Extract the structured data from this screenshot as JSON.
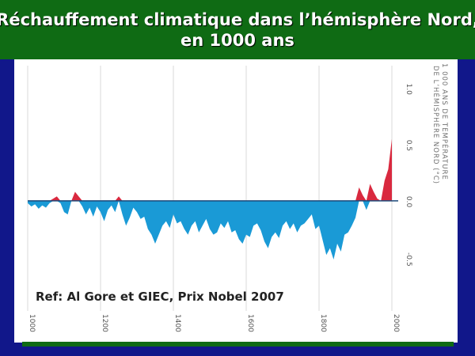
{
  "slide": {
    "title_line1": "Réchauffement climatique dans l’hémisphère Nord,",
    "title_line2": "en 1000 ans",
    "reference": "Ref: Al Gore et GIEC, Prix Nobel 2007"
  },
  "chart_data": {
    "type": "area",
    "ylabel_line1": "1 000 ANS DE TEMPÉRATURE",
    "ylabel_line2": "DE L’HÉMISPHÈRE NORD (°C)",
    "xlim": [
      1000,
      2000
    ],
    "ylim": [
      -0.85,
      1.2
    ],
    "x_ticks": [
      1000,
      1200,
      1400,
      1600,
      1800,
      2000
    ],
    "y_ticks": [
      1.0,
      0.5,
      0.0,
      -0.5
    ],
    "y_tick_labels": [
      "1.0",
      "0.5",
      "0.0",
      "-0.5"
    ],
    "grid": true,
    "series": [
      {
        "positive_color": "#d9293f",
        "negative_color": "#1a9ad6",
        "x": [
          1000,
          1010,
          1020,
          1030,
          1040,
          1050,
          1060,
          1070,
          1080,
          1090,
          1100,
          1110,
          1120,
          1130,
          1140,
          1150,
          1160,
          1170,
          1180,
          1190,
          1200,
          1210,
          1220,
          1230,
          1240,
          1250,
          1260,
          1270,
          1280,
          1290,
          1300,
          1310,
          1320,
          1330,
          1340,
          1350,
          1360,
          1370,
          1380,
          1390,
          1400,
          1410,
          1420,
          1430,
          1440,
          1450,
          1460,
          1470,
          1480,
          1490,
          1500,
          1510,
          1520,
          1530,
          1540,
          1550,
          1560,
          1570,
          1580,
          1590,
          1600,
          1610,
          1620,
          1630,
          1640,
          1650,
          1660,
          1670,
          1680,
          1690,
          1700,
          1710,
          1720,
          1730,
          1740,
          1750,
          1760,
          1770,
          1780,
          1790,
          1800,
          1810,
          1820,
          1830,
          1840,
          1850,
          1860,
          1870,
          1880,
          1890,
          1900,
          1910,
          1920,
          1930,
          1940,
          1950,
          1960,
          1970,
          1980,
          1990,
          2000
        ],
        "y": [
          -0.02,
          -0.05,
          -0.03,
          -0.07,
          -0.04,
          -0.06,
          -0.02,
          0.02,
          0.04,
          -0.02,
          -0.1,
          -0.12,
          0.0,
          0.08,
          0.04,
          -0.05,
          -0.12,
          -0.06,
          -0.14,
          -0.05,
          -0.1,
          -0.18,
          -0.08,
          -0.04,
          -0.1,
          0.04,
          -0.12,
          -0.22,
          -0.15,
          -0.06,
          -0.1,
          -0.16,
          -0.14,
          -0.25,
          -0.3,
          -0.38,
          -0.3,
          -0.22,
          -0.18,
          -0.24,
          -0.12,
          -0.2,
          -0.18,
          -0.25,
          -0.3,
          -0.22,
          -0.18,
          -0.28,
          -0.22,
          -0.16,
          -0.25,
          -0.3,
          -0.28,
          -0.2,
          -0.24,
          -0.18,
          -0.28,
          -0.26,
          -0.34,
          -0.38,
          -0.3,
          -0.32,
          -0.22,
          -0.2,
          -0.26,
          -0.36,
          -0.42,
          -0.32,
          -0.28,
          -0.33,
          -0.22,
          -0.18,
          -0.25,
          -0.2,
          -0.28,
          -0.22,
          -0.2,
          -0.16,
          -0.12,
          -0.25,
          -0.22,
          -0.35,
          -0.48,
          -0.42,
          -0.52,
          -0.38,
          -0.45,
          -0.3,
          -0.28,
          -0.22,
          -0.15,
          0.12,
          0.05,
          -0.08,
          0.15,
          0.08,
          0.02,
          0.0,
          0.18,
          0.28,
          0.55
        ]
      }
    ]
  }
}
